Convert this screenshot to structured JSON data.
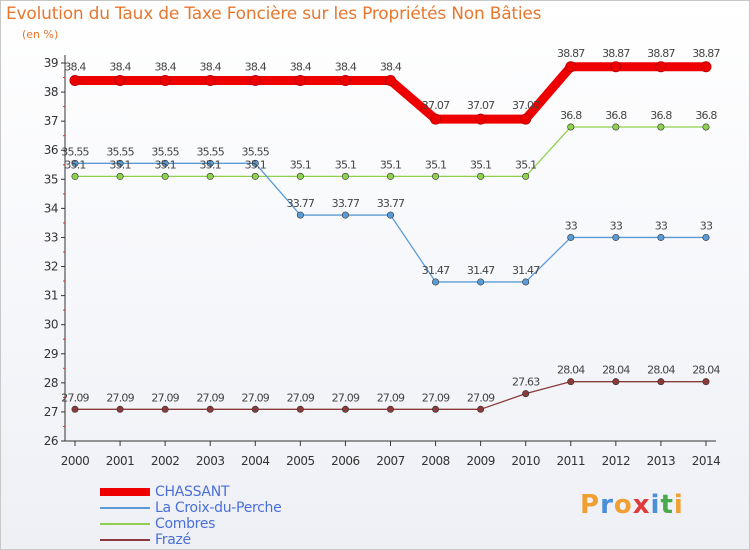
{
  "chart_data": {
    "type": "line",
    "title": "Evolution du Taux de Taxe Foncière sur les Propriétés Non Bâties",
    "unit": "(en %)",
    "xlabel": "",
    "ylabel": "(en %)",
    "ylim": [
      26,
      39
    ],
    "yticks": [
      "26",
      "27",
      "28",
      "29",
      "30",
      "31",
      "32",
      "33",
      "34",
      "35",
      "36",
      "37",
      "38",
      "39"
    ],
    "categories": [
      "2000",
      "2001",
      "2002",
      "2003",
      "2004",
      "2005",
      "2006",
      "2007",
      "2008",
      "2009",
      "2010",
      "2011",
      "2012",
      "2013",
      "2014"
    ],
    "series": [
      {
        "name": "CHASSANT",
        "color": "#ee0000",
        "values": [
          38.4,
          38.4,
          38.4,
          38.4,
          38.4,
          38.4,
          38.4,
          38.4,
          37.07,
          37.07,
          37.07,
          38.87,
          38.87,
          38.87,
          38.87
        ],
        "labels": [
          "38.4",
          "38.4",
          "38.4",
          "38.4",
          "38.4",
          "38.4",
          "38.4",
          "38.4",
          "37.07",
          "37.07",
          "37.07",
          "38.87",
          "38.87",
          "38.87",
          "38.87"
        ]
      },
      {
        "name": "La Croix-du-Perche",
        "color": "#5b9bd5",
        "values": [
          35.55,
          35.55,
          35.55,
          35.55,
          35.55,
          33.77,
          33.77,
          33.77,
          31.47,
          31.47,
          31.47,
          33,
          33,
          33,
          33
        ],
        "labels": [
          "35.55",
          "35.55",
          "35.55",
          "35.55",
          "35.55",
          "33.77",
          "33.77",
          "33.77",
          "31.47",
          "31.47",
          "31.47",
          "33",
          "33",
          "33",
          "33"
        ]
      },
      {
        "name": "Combres",
        "color": "#8fd14f",
        "values": [
          35.1,
          35.1,
          35.1,
          35.1,
          35.1,
          35.1,
          35.1,
          35.1,
          35.1,
          35.1,
          35.1,
          36.8,
          36.8,
          36.8,
          36.8
        ],
        "labels": [
          "35.1",
          "35.1",
          "35.1",
          "35.1",
          "35.1",
          "35.1",
          "35.1",
          "35.1",
          "35.1",
          "35.1",
          "35.1",
          "36.8",
          "36.8",
          "36.8",
          "36.8"
        ]
      },
      {
        "name": "Frazé",
        "color": "#8b3a3a",
        "values": [
          27.09,
          27.09,
          27.09,
          27.09,
          27.09,
          27.09,
          27.09,
          27.09,
          27.09,
          27.09,
          27.63,
          28.04,
          28.04,
          28.04,
          28.04
        ],
        "labels": [
          "27.09",
          "27.09",
          "27.09",
          "27.09",
          "27.09",
          "27.09",
          "27.09",
          "27.09",
          "27.09",
          "27.09",
          "27.63",
          "28.04",
          "28.04",
          "28.04",
          "28.04"
        ]
      }
    ],
    "legend_position": "bottom-left",
    "grid": false
  },
  "logo": {
    "text": "Proxiti",
    "colors": [
      "#f0a030",
      "#4a8fd8",
      "#f0a030",
      "#e03a3a",
      "#4a8fd8",
      "#4aaa4a",
      "#f0a030"
    ]
  }
}
